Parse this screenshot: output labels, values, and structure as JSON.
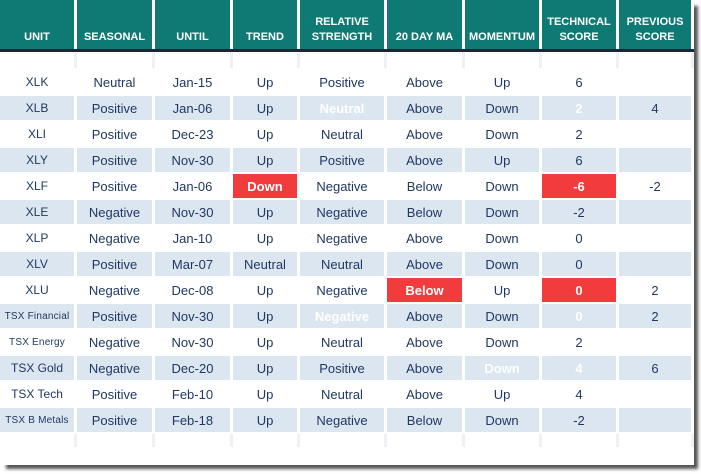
{
  "colors": {
    "header_bg": "#0F7A74",
    "header_text": "#FFFFFF",
    "highlight_bg": "#F23B3C",
    "highlight_text": "#FFFFFF",
    "row_alt_bg": "#DCE6F1",
    "row_bg": "#FFFFFF",
    "body_text": "#1F3864",
    "divider": "#1B2636"
  },
  "table": {
    "headers": [
      {
        "key": "unit",
        "label": "UNIT"
      },
      {
        "key": "seasonal",
        "label": "SEASONAL"
      },
      {
        "key": "until",
        "label": "UNTIL"
      },
      {
        "key": "trend",
        "label": "TREND"
      },
      {
        "key": "relative_strength",
        "label": "RELATIVE\nSTRENGTH"
      },
      {
        "key": "ma20",
        "label": "20 DAY MA"
      },
      {
        "key": "momentum",
        "label": "MOMENTUM"
      },
      {
        "key": "technical_score",
        "label": "TECHNICAL\nSCORE"
      },
      {
        "key": "previous_score",
        "label": "PREVIOUS\nSCORE"
      }
    ],
    "rows": [
      {
        "unit": "XLK",
        "seasonal": "Neutral",
        "until": "Jan-15",
        "trend": "Up",
        "relative_strength": "Positive",
        "ma20": "Above",
        "momentum": "Up",
        "technical_score": "6",
        "previous_score": "",
        "highlights": []
      },
      {
        "unit": "XLB",
        "seasonal": "Positive",
        "until": "Jan-06",
        "trend": "Up",
        "relative_strength": "Neutral",
        "ma20": "Above",
        "momentum": "Down",
        "technical_score": "2",
        "previous_score": "4",
        "highlights": [
          "relative_strength",
          "technical_score"
        ]
      },
      {
        "unit": "XLI",
        "seasonal": "Positive",
        "until": "Dec-23",
        "trend": "Up",
        "relative_strength": "Neutral",
        "ma20": "Above",
        "momentum": "Down",
        "technical_score": "2",
        "previous_score": "",
        "highlights": []
      },
      {
        "unit": "XLY",
        "seasonal": "Positive",
        "until": "Nov-30",
        "trend": "Up",
        "relative_strength": "Positive",
        "ma20": "Above",
        "momentum": "Up",
        "technical_score": "6",
        "previous_score": "",
        "highlights": []
      },
      {
        "unit": "XLF",
        "seasonal": "Positive",
        "until": "Jan-06",
        "trend": "Down",
        "relative_strength": "Negative",
        "ma20": "Below",
        "momentum": "Down",
        "technical_score": "-6",
        "previous_score": "-2",
        "highlights": [
          "trend",
          "technical_score"
        ]
      },
      {
        "unit": "XLE",
        "seasonal": "Negative",
        "until": "Nov-30",
        "trend": "Up",
        "relative_strength": "Negative",
        "ma20": "Below",
        "momentum": "Down",
        "technical_score": "-2",
        "previous_score": "",
        "highlights": []
      },
      {
        "unit": "XLP",
        "seasonal": "Negative",
        "until": "Jan-10",
        "trend": "Up",
        "relative_strength": "Negative",
        "ma20": "Above",
        "momentum": "Down",
        "technical_score": "0",
        "previous_score": "",
        "highlights": []
      },
      {
        "unit": "XLV",
        "seasonal": "Positive",
        "until": "Mar-07",
        "trend": "Neutral",
        "relative_strength": "Neutral",
        "ma20": "Above",
        "momentum": "Down",
        "technical_score": "0",
        "previous_score": "",
        "highlights": []
      },
      {
        "unit": "XLU",
        "seasonal": "Negative",
        "until": "Dec-08",
        "trend": "Up",
        "relative_strength": "Negative",
        "ma20": "Below",
        "momentum": "Up",
        "technical_score": "0",
        "previous_score": "2",
        "highlights": [
          "ma20",
          "technical_score"
        ]
      },
      {
        "unit": "TSX Financial",
        "seasonal": "Positive",
        "until": "Nov-30",
        "trend": "Up",
        "relative_strength": "Negative",
        "ma20": "Above",
        "momentum": "Down",
        "technical_score": "0",
        "previous_score": "2",
        "highlights": [
          "relative_strength",
          "technical_score"
        ]
      },
      {
        "unit": "TSX Energy",
        "seasonal": "Negative",
        "until": "Nov-30",
        "trend": "Up",
        "relative_strength": "Neutral",
        "ma20": "Above",
        "momentum": "Down",
        "technical_score": "2",
        "previous_score": "",
        "highlights": []
      },
      {
        "unit": "TSX Gold",
        "seasonal": "Negative",
        "until": "Dec-20",
        "trend": "Up",
        "relative_strength": "Positive",
        "ma20": "Above",
        "momentum": "Down",
        "technical_score": "4",
        "previous_score": "6",
        "highlights": [
          "momentum",
          "technical_score"
        ]
      },
      {
        "unit": "TSX Tech",
        "seasonal": "Positive",
        "until": "Feb-10",
        "trend": "Up",
        "relative_strength": "Neutral",
        "ma20": "Above",
        "momentum": "Up",
        "technical_score": "4",
        "previous_score": "",
        "highlights": []
      },
      {
        "unit": "TSX B Metals",
        "seasonal": "Positive",
        "until": "Feb-18",
        "trend": "Up",
        "relative_strength": "Negative",
        "ma20": "Below",
        "momentum": "Down",
        "technical_score": "-2",
        "previous_score": "",
        "highlights": []
      }
    ]
  }
}
